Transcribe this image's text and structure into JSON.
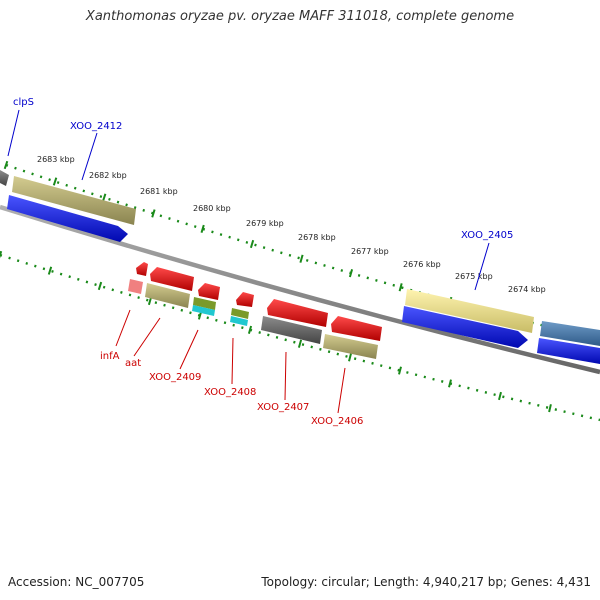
{
  "header": {
    "title": "Xanthomonas oryzae pv. oryzae MAFF 311018, complete genome"
  },
  "footer": {
    "accession": "Accession: NC_007705",
    "summary": "Topology: circular; Length: 4,940,217 bp; Genes: 4,431"
  },
  "scale": {
    "ticks": [
      "2683 kbp",
      "2682 kbp",
      "2681 kbp",
      "2680 kbp",
      "2679 kbp",
      "2678 kbp",
      "2677 kbp",
      "2676 kbp",
      "2675 kbp",
      "2674 kbp"
    ]
  },
  "genes": {
    "top": [
      "clpS",
      "XOO_2412",
      "XOO_2405"
    ],
    "bottom": [
      "infA",
      "aat",
      "XOO_2409",
      "XOO_2408",
      "XOO_2407",
      "XOO_2406"
    ]
  },
  "colors": {
    "forward_label": "#0000cc",
    "reverse_label": "#cc0000",
    "tick": "#1a8a1a",
    "cds_blue": "#0a14e0",
    "cds_red": "#ee1010",
    "gene_olive": "#b8b070",
    "gene_yellow": "#ece08a",
    "gene_gray": "#6a6a6a",
    "steelblue": "#4a7aaa"
  }
}
